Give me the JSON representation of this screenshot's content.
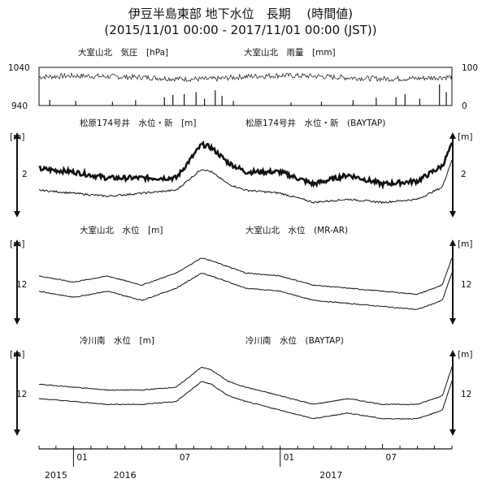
{
  "title": {
    "line1": "伊豆半島東部 地下水位　長期　 (時間値)",
    "line2": "(2015/11/01 00:00 - 2017/11/01 00:00 (JST))"
  },
  "chart_data": [
    {
      "type": "line",
      "panel": "pressure-rain",
      "left_label": "大室山北　気圧　[hPa]",
      "right_label": "大室山北　雨量　[mm]",
      "ylim_left": [
        940,
        1040
      ],
      "left_ticks": [
        "1040",
        "940"
      ],
      "ylim_right": [
        0,
        100
      ],
      "right_ticks": [
        "100",
        "0"
      ],
      "series": [
        {
          "axis": "left",
          "x": [
            "2015-11-01",
            "2016-01-01",
            "2016-03-01",
            "2016-05-01",
            "2016-07-01",
            "2016-09-01",
            "2016-11-01",
            "2017-01-01",
            "2017-03-01",
            "2017-05-01",
            "2017-07-01",
            "2017-09-01",
            "2017-11-01"
          ],
          "values": [
            1015,
            1018,
            1016,
            1014,
            1010,
            1009,
            1016,
            1019,
            1017,
            1013,
            1010,
            1011,
            1015
          ]
        },
        {
          "axis": "right",
          "type": "bar",
          "x": [
            "2015-11-20",
            "2016-01-05",
            "2016-03-10",
            "2016-04-20",
            "2016-06-10",
            "2016-06-25",
            "2016-07-15",
            "2016-08-05",
            "2016-08-20",
            "2016-09-08",
            "2016-09-20",
            "2016-10-10",
            "2017-01-20",
            "2017-03-15",
            "2017-05-10",
            "2017-06-20",
            "2017-07-25",
            "2017-08-10",
            "2017-09-05",
            "2017-10-10",
            "2017-10-22"
          ],
          "values": [
            15,
            12,
            10,
            14,
            22,
            28,
            30,
            35,
            18,
            40,
            25,
            12,
            8,
            10,
            14,
            20,
            22,
            30,
            18,
            55,
            35
          ]
        }
      ]
    },
    {
      "type": "line",
      "panel": "matsubara-174",
      "left_label": "松原174号井　水位・新　[m]",
      "right_label": "松原174号井　水位・新　(BAYTAP)",
      "unit_left": "[m]",
      "unit_right": "[m]",
      "left_tick": "2",
      "right_tick": "2",
      "series": [
        {
          "name": "水位・新",
          "x": [
            "2015-11-01",
            "2016-01-01",
            "2016-03-01",
            "2016-05-01",
            "2016-07-01",
            "2016-08-15",
            "2016-09-01",
            "2016-10-01",
            "2016-11-01",
            "2017-01-01",
            "2017-03-01",
            "2017-05-01",
            "2017-07-01",
            "2017-09-01",
            "2017-10-15",
            "2017-11-01"
          ],
          "values": [
            2.2,
            2.15,
            2.05,
            2.05,
            2.05,
            2.6,
            2.55,
            2.3,
            2.15,
            2.15,
            1.95,
            2.1,
            1.95,
            2.0,
            2.25,
            2.6
          ]
        },
        {
          "name": "BAYTAP",
          "x": [
            "2015-11-01",
            "2016-01-01",
            "2016-03-01",
            "2016-05-01",
            "2016-07-01",
            "2016-08-15",
            "2016-09-01",
            "2016-10-01",
            "2016-11-01",
            "2017-01-01",
            "2017-03-01",
            "2017-05-01",
            "2017-07-01",
            "2017-09-01",
            "2017-10-15",
            "2017-11-01"
          ],
          "values": [
            1.85,
            1.8,
            1.75,
            1.8,
            1.85,
            2.2,
            2.15,
            1.95,
            1.85,
            1.8,
            1.65,
            1.7,
            1.65,
            1.7,
            1.9,
            2.35
          ]
        }
      ]
    },
    {
      "type": "line",
      "panel": "omuroyama-kita",
      "left_label": "大室山北　水位　[m]",
      "right_label": "大室山北　水位　(MR-AR)",
      "unit_left": "[m]",
      "unit_right": "[m]",
      "left_tick": "12",
      "right_tick": "12",
      "series": [
        {
          "name": "水位",
          "x": [
            "2015-11-01",
            "2016-01-01",
            "2016-03-01",
            "2016-05-01",
            "2016-07-01",
            "2016-08-15",
            "2016-09-01",
            "2016-11-01",
            "2017-01-01",
            "2017-03-01",
            "2017-05-01",
            "2017-07-01",
            "2017-09-01",
            "2017-10-15",
            "2017-11-01"
          ],
          "values": [
            12.3,
            12.2,
            12.3,
            12.15,
            12.35,
            12.6,
            12.55,
            12.35,
            12.3,
            12.15,
            12.1,
            12.05,
            12.0,
            12.15,
            12.6
          ]
        },
        {
          "name": "MR-AR",
          "x": [
            "2015-11-01",
            "2016-01-01",
            "2016-03-01",
            "2016-05-01",
            "2016-07-01",
            "2016-08-15",
            "2016-09-01",
            "2016-11-01",
            "2017-01-01",
            "2017-03-01",
            "2017-05-01",
            "2017-07-01",
            "2017-09-01",
            "2017-10-15",
            "2017-11-01"
          ],
          "values": [
            12.05,
            11.95,
            12.05,
            11.9,
            12.1,
            12.35,
            12.3,
            12.1,
            12.05,
            11.9,
            11.85,
            11.8,
            11.75,
            11.9,
            12.35
          ]
        }
      ]
    },
    {
      "type": "line",
      "panel": "hiekawa-minami",
      "left_label": "冷川南　水位　[m]",
      "right_label": "冷川南　水位　(BAYTAP)",
      "unit_left": "[m]",
      "unit_right": "[m]",
      "left_tick": "12",
      "right_tick": "12",
      "series": [
        {
          "name": "水位",
          "x": [
            "2015-11-01",
            "2016-01-01",
            "2016-03-01",
            "2016-05-01",
            "2016-07-01",
            "2016-08-15",
            "2016-09-01",
            "2016-10-01",
            "2016-11-01",
            "2017-01-01",
            "2017-03-01",
            "2017-05-01",
            "2017-07-01",
            "2017-09-01",
            "2017-10-15",
            "2017-11-01"
          ],
          "values": [
            12.3,
            12.25,
            12.2,
            12.2,
            12.25,
            12.6,
            12.55,
            12.35,
            12.25,
            12.1,
            11.95,
            12.05,
            11.95,
            11.95,
            12.1,
            12.6
          ]
        },
        {
          "name": "BAYTAP",
          "x": [
            "2015-11-01",
            "2016-01-01",
            "2016-03-01",
            "2016-05-01",
            "2016-07-01",
            "2016-08-15",
            "2016-09-01",
            "2016-10-01",
            "2016-11-01",
            "2017-01-01",
            "2017-03-01",
            "2017-05-01",
            "2017-07-01",
            "2017-09-01",
            "2017-10-15",
            "2017-11-01"
          ],
          "values": [
            12.05,
            12.0,
            11.95,
            11.95,
            12.0,
            12.35,
            12.3,
            12.1,
            12.0,
            11.85,
            11.7,
            11.8,
            11.7,
            11.7,
            11.85,
            12.35
          ]
        }
      ]
    }
  ],
  "x_axis": {
    "xlim": [
      "2015-11-01",
      "2017-11-01"
    ],
    "month_ticks": [
      {
        "x": "2016-01-01",
        "label": "01"
      },
      {
        "x": "2016-07-01",
        "label": "07"
      },
      {
        "x": "2017-01-01",
        "label": "01"
      },
      {
        "x": "2017-07-01",
        "label": "07"
      }
    ],
    "year_labels": [
      {
        "x": "2015-12-01",
        "label": "2015"
      },
      {
        "x": "2016-04-01",
        "label": "2016"
      },
      {
        "x": "2017-04-01",
        "label": "2017"
      }
    ]
  }
}
